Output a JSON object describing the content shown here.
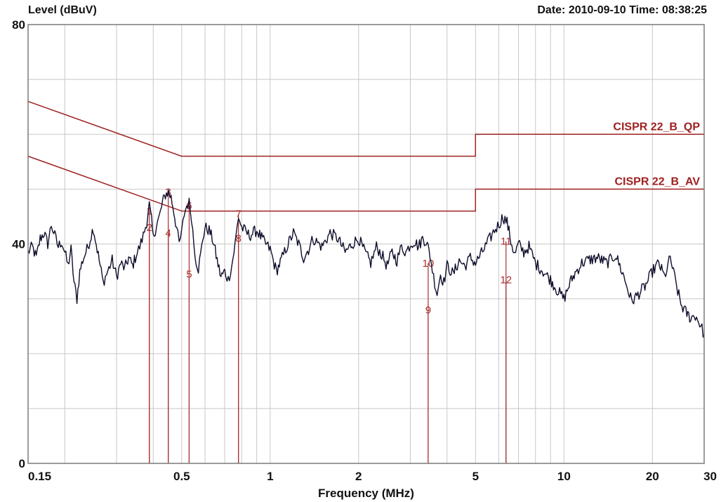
{
  "header": {
    "ylabel": "Level (dBuV)",
    "datetime": "Date: 2010-09-10  Time: 08:38:25"
  },
  "colors": {
    "trace": "#0d0d2b",
    "limit": "#a02020",
    "marker": "#a83030",
    "grid": "#c8c8c8",
    "frame": "#7a7a7a"
  },
  "chart_data": {
    "type": "line",
    "title": "",
    "xlabel": "Frequency (MHz)",
    "ylabel": "Level (dBuV)",
    "x_scale": "log",
    "xlim": [
      0.15,
      30
    ],
    "ylim": [
      0,
      80
    ],
    "grid": true,
    "y_ticks": [
      {
        "value": 0,
        "label": "0"
      },
      {
        "value": 40,
        "label": "40"
      },
      {
        "value": 80,
        "label": "80"
      }
    ],
    "x_ticks": [
      {
        "value": 0.15,
        "label": "0.15"
      },
      {
        "value": 0.5,
        "label": "0.5"
      },
      {
        "value": 1,
        "label": "1"
      },
      {
        "value": 2,
        "label": "2"
      },
      {
        "value": 5,
        "label": "5"
      },
      {
        "value": 10,
        "label": "10"
      },
      {
        "value": 20,
        "label": "20"
      },
      {
        "value": 30,
        "label": "30"
      }
    ],
    "limits": [
      {
        "name": "CISPR 22_B_QP",
        "points": [
          [
            0.15,
            66
          ],
          [
            0.5,
            56
          ],
          [
            5,
            56
          ],
          [
            5,
            60
          ],
          [
            30,
            60
          ]
        ]
      },
      {
        "name": "CISPR 22_B_AV",
        "points": [
          [
            0.15,
            56
          ],
          [
            0.5,
            46
          ],
          [
            5,
            46
          ],
          [
            5,
            50
          ],
          [
            30,
            50
          ]
        ]
      }
    ],
    "markers": [
      {
        "label": "1",
        "freq": 0.388,
        "level": 46.0
      },
      {
        "label": "2",
        "freq": 0.388,
        "level": 43.0
      },
      {
        "label": "3",
        "freq": 0.45,
        "level": 49.5
      },
      {
        "label": "4",
        "freq": 0.45,
        "level": 42.0
      },
      {
        "label": "5",
        "freq": 0.53,
        "level": 34.5
      },
      {
        "label": "6",
        "freq": 0.53,
        "level": 47.0
      },
      {
        "label": "7",
        "freq": 0.78,
        "level": 45.5
      },
      {
        "label": "8",
        "freq": 0.78,
        "level": 41.0
      },
      {
        "label": "9",
        "freq": 3.45,
        "level": 28.0
      },
      {
        "label": "10",
        "freq": 3.45,
        "level": 36.5
      },
      {
        "label": "11",
        "freq": 6.35,
        "level": 40.5
      },
      {
        "label": "12",
        "freq": 6.35,
        "level": 33.5
      }
    ],
    "series": [
      {
        "points": [
          [
            0.15,
            38.5
          ],
          [
            0.155,
            39.5
          ],
          [
            0.16,
            37.5
          ],
          [
            0.165,
            41.0
          ],
          [
            0.17,
            42.0
          ],
          [
            0.175,
            40.0
          ],
          [
            0.18,
            43.5
          ],
          [
            0.185,
            41.5
          ],
          [
            0.19,
            39.5
          ],
          [
            0.195,
            40.5
          ],
          [
            0.2,
            38.5
          ],
          [
            0.205,
            36.0
          ],
          [
            0.21,
            39.0
          ],
          [
            0.215,
            33.0
          ],
          [
            0.22,
            30.0
          ],
          [
            0.225,
            35.0
          ],
          [
            0.23,
            37.0
          ],
          [
            0.24,
            39.5
          ],
          [
            0.25,
            43.0
          ],
          [
            0.26,
            38.0
          ],
          [
            0.27,
            33.0
          ],
          [
            0.28,
            35.0
          ],
          [
            0.29,
            37.0
          ],
          [
            0.3,
            34.0
          ],
          [
            0.31,
            36.5
          ],
          [
            0.32,
            35.5
          ],
          [
            0.33,
            37.5
          ],
          [
            0.34,
            36.0
          ],
          [
            0.35,
            38.0
          ],
          [
            0.36,
            39.5
          ],
          [
            0.37,
            41.5
          ],
          [
            0.38,
            44.0
          ],
          [
            0.388,
            47.0
          ],
          [
            0.395,
            44.0
          ],
          [
            0.4,
            41.0
          ],
          [
            0.41,
            43.5
          ],
          [
            0.42,
            45.0
          ],
          [
            0.43,
            47.5
          ],
          [
            0.44,
            49.0
          ],
          [
            0.45,
            49.5
          ],
          [
            0.46,
            48.5
          ],
          [
            0.47,
            46.0
          ],
          [
            0.48,
            43.0
          ],
          [
            0.49,
            40.0
          ],
          [
            0.5,
            42.0
          ],
          [
            0.51,
            45.5
          ],
          [
            0.52,
            47.0
          ],
          [
            0.53,
            47.5
          ],
          [
            0.54,
            45.0
          ],
          [
            0.55,
            40.0
          ],
          [
            0.56,
            37.0
          ],
          [
            0.57,
            35.5
          ],
          [
            0.58,
            38.0
          ],
          [
            0.59,
            41.0
          ],
          [
            0.6,
            43.0
          ],
          [
            0.62,
            42.5
          ],
          [
            0.64,
            40.5
          ],
          [
            0.66,
            37.0
          ],
          [
            0.68,
            34.0
          ],
          [
            0.7,
            35.0
          ],
          [
            0.72,
            33.5
          ],
          [
            0.74,
            36.0
          ],
          [
            0.76,
            40.0
          ],
          [
            0.78,
            45.0
          ],
          [
            0.8,
            43.0
          ],
          [
            0.85,
            41.5
          ],
          [
            0.9,
            42.5
          ],
          [
            0.95,
            40.5
          ],
          [
            1.0,
            39.0
          ],
          [
            1.05,
            35.0
          ],
          [
            1.1,
            37.5
          ],
          [
            1.15,
            40.0
          ],
          [
            1.2,
            42.0
          ],
          [
            1.25,
            40.0
          ],
          [
            1.3,
            37.5
          ],
          [
            1.35,
            39.0
          ],
          [
            1.4,
            41.0
          ],
          [
            1.5,
            39.5
          ],
          [
            1.6,
            42.0
          ],
          [
            1.7,
            41.0
          ],
          [
            1.8,
            38.5
          ],
          [
            1.9,
            40.0
          ],
          [
            2.0,
            41.0
          ],
          [
            2.1,
            38.5
          ],
          [
            2.2,
            36.5
          ],
          [
            2.3,
            39.5
          ],
          [
            2.4,
            38.0
          ],
          [
            2.5,
            36.0
          ],
          [
            2.6,
            38.5
          ],
          [
            2.7,
            37.0
          ],
          [
            2.8,
            39.5
          ],
          [
            2.9,
            38.5
          ],
          [
            3.0,
            40.0
          ],
          [
            3.1,
            40.5
          ],
          [
            3.2,
            39.5
          ],
          [
            3.3,
            41.0
          ],
          [
            3.4,
            40.5
          ],
          [
            3.5,
            38.0
          ],
          [
            3.6,
            34.0
          ],
          [
            3.7,
            31.0
          ],
          [
            3.8,
            34.5
          ],
          [
            3.9,
            33.0
          ],
          [
            4.0,
            36.0
          ],
          [
            4.2,
            34.5
          ],
          [
            4.4,
            37.0
          ],
          [
            4.6,
            36.0
          ],
          [
            4.8,
            37.5
          ],
          [
            5.0,
            36.5
          ],
          [
            5.2,
            38.0
          ],
          [
            5.4,
            39.5
          ],
          [
            5.6,
            41.0
          ],
          [
            5.8,
            42.5
          ],
          [
            6.0,
            43.5
          ],
          [
            6.2,
            45.0
          ],
          [
            6.4,
            44.0
          ],
          [
            6.6,
            40.5
          ],
          [
            6.8,
            38.0
          ],
          [
            7.0,
            40.0
          ],
          [
            7.3,
            38.5
          ],
          [
            7.6,
            39.5
          ],
          [
            8.0,
            36.5
          ],
          [
            8.5,
            35.0
          ],
          [
            9.0,
            33.5
          ],
          [
            9.5,
            31.5
          ],
          [
            10.0,
            30.0
          ],
          [
            10.5,
            33.0
          ],
          [
            11.0,
            35.0
          ],
          [
            11.5,
            36.5
          ],
          [
            12.0,
            37.0
          ],
          [
            13.0,
            37.5
          ],
          [
            14.0,
            36.5
          ],
          [
            15.0,
            38.0
          ],
          [
            16.0,
            34.0
          ],
          [
            17.0,
            29.5
          ],
          [
            18.0,
            31.0
          ],
          [
            19.0,
            32.5
          ],
          [
            20.0,
            35.0
          ],
          [
            21.0,
            36.5
          ],
          [
            22.0,
            34.0
          ],
          [
            23.0,
            37.5
          ],
          [
            24.0,
            33.0
          ],
          [
            25.0,
            29.0
          ],
          [
            26.0,
            27.5
          ],
          [
            27.0,
            26.5
          ],
          [
            28.0,
            27.0
          ],
          [
            29.0,
            25.5
          ],
          [
            30.0,
            23.5
          ]
        ]
      }
    ]
  }
}
